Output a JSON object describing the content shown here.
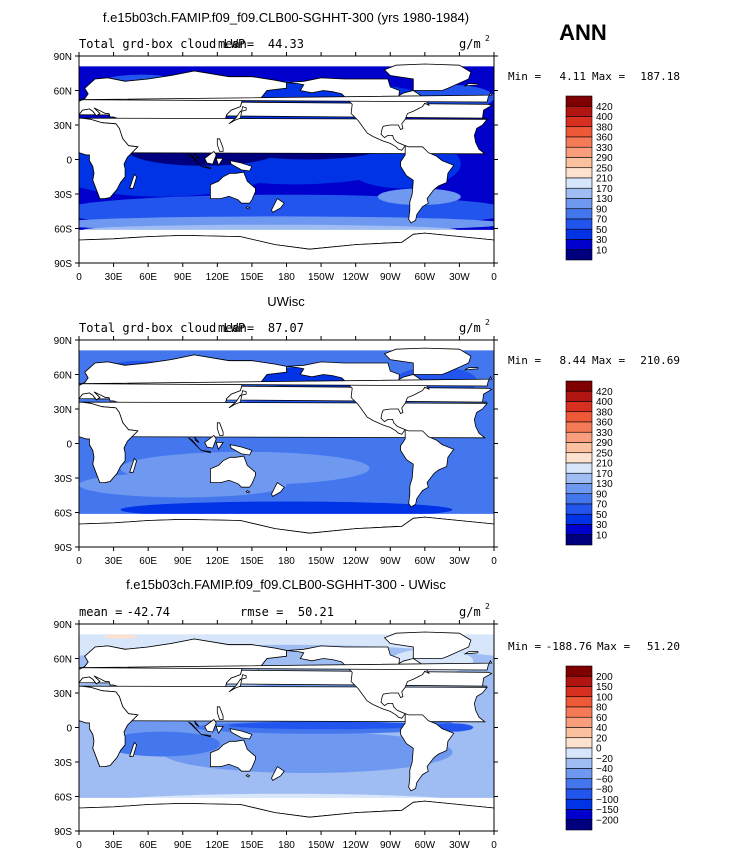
{
  "page": {
    "season": "ANN",
    "units": "g/m",
    "units_sup": "2"
  },
  "chart_data": [
    {
      "type": "heatmap",
      "title": "f.e15b03ch.FAMIP.f09_f09.CLB00-SGHHT-300 (yrs 1980-1984)",
      "variable": "Total grd-box cloud LWP",
      "mean_label": "mean=",
      "mean": "44.33",
      "min_label": "Min =",
      "min": "4.11",
      "max_label": "Max =",
      "max": "187.18",
      "lat_ticks": [
        "90N",
        "60N",
        "30N",
        "0",
        "30S",
        "60S",
        "90S"
      ],
      "lon_ticks": [
        "0",
        "30E",
        "60E",
        "90E",
        "120E",
        "150E",
        "180",
        "150W",
        "120W",
        "90W",
        "60W",
        "30W",
        "0"
      ],
      "contour_levels": [
        "10",
        "30",
        "50",
        "70",
        "90",
        "130",
        "170",
        "210",
        "250",
        "290",
        "330",
        "360",
        "380",
        "400",
        "420"
      ],
      "colors": [
        "#00007f",
        "#0000cc",
        "#0033e6",
        "#2255ee",
        "#4477ee",
        "#6f99f0",
        "#9fbdf2",
        "#d7e6fb",
        "#fde3cf",
        "#fbc09e",
        "#f99e7c",
        "#f57a58",
        "#ee5a38",
        "#d73020",
        "#b01512",
        "#7f0000"
      ]
    },
    {
      "type": "heatmap",
      "title": "UWisc",
      "variable": "Total grd-box cloud LWP",
      "mean_label": "mean=",
      "mean": "87.07",
      "min_label": "Min =",
      "min": "8.44",
      "max_label": "Max =",
      "max": "210.69",
      "lat_ticks": [
        "90N",
        "60N",
        "30N",
        "0",
        "30S",
        "60S",
        "90S"
      ],
      "lon_ticks": [
        "0",
        "30E",
        "60E",
        "90E",
        "120E",
        "150E",
        "180",
        "150W",
        "120W",
        "90W",
        "60W",
        "30W",
        "0"
      ],
      "contour_levels": [
        "10",
        "30",
        "50",
        "70",
        "90",
        "130",
        "170",
        "210",
        "250",
        "290",
        "330",
        "360",
        "380",
        "400",
        "420"
      ],
      "colors": [
        "#00007f",
        "#0000cc",
        "#0033e6",
        "#2255ee",
        "#4477ee",
        "#6f99f0",
        "#9fbdf2",
        "#d7e6fb",
        "#fde3cf",
        "#fbc09e",
        "#f99e7c",
        "#f57a58",
        "#ee5a38",
        "#d73020",
        "#b01512",
        "#7f0000"
      ]
    },
    {
      "type": "heatmap",
      "title": "f.e15b03ch.FAMIP.f09_f09.CLB00-SGHHT-300 - UWisc",
      "variable": "",
      "mean_label": "mean =",
      "mean": "-42.74",
      "rmse_label": "rmse =",
      "rmse": "50.21",
      "min_label": "Min =",
      "min": "-188.76",
      "max_label": "Max =",
      "max": "51.20",
      "lat_ticks": [
        "90N",
        "60N",
        "30N",
        "0",
        "30S",
        "60S",
        "90S"
      ],
      "lon_ticks": [
        "0",
        "30E",
        "60E",
        "90E",
        "120E",
        "150E",
        "180",
        "150W",
        "120W",
        "90W",
        "60W",
        "30W",
        "0"
      ],
      "contour_levels": [
        "200",
        "150",
        "100",
        "80",
        "60",
        "40",
        "20",
        "0",
        "−20",
        "−40",
        "−60",
        "−80",
        "−100",
        "−150",
        "−200"
      ],
      "colors": [
        "#7f0000",
        "#b01512",
        "#d73020",
        "#ee5a38",
        "#f57a58",
        "#f99e7c",
        "#fbc09e",
        "#fde3cf",
        "#d7e6fb",
        "#9fbdf2",
        "#6f99f0",
        "#4477ee",
        "#2255ee",
        "#0033e6",
        "#0000cc",
        "#00007f"
      ]
    }
  ]
}
